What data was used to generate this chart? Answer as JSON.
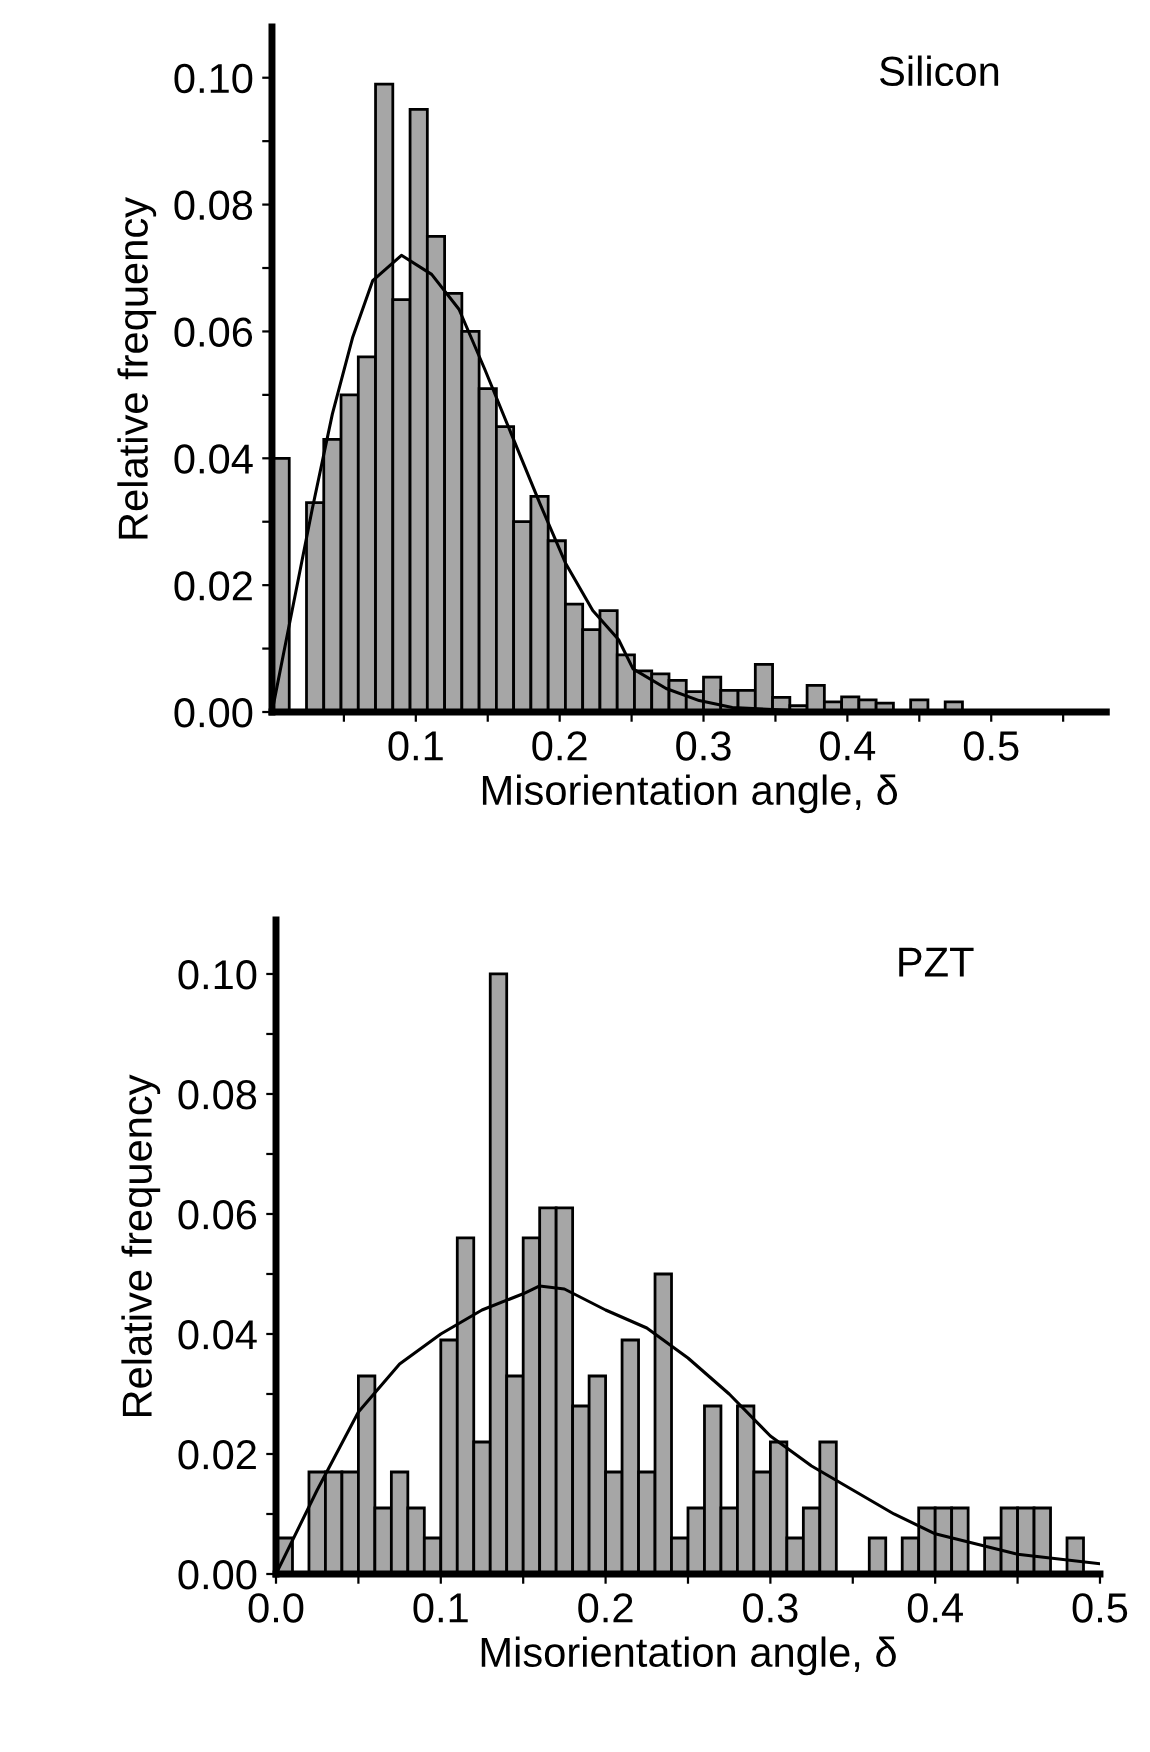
{
  "chart_data": [
    {
      "type": "histogram",
      "xlabel": "Misorientation angle, δ",
      "ylabel": "Relative frequency",
      "annotations": [
        "Silicon"
      ],
      "color": "#a6a6a6",
      "grid": false,
      "legend": false,
      "bins": [
        0,
        0.012,
        0.024,
        0.036,
        0.048,
        0.06,
        0.072,
        0.084,
        0.096,
        0.108,
        0.12,
        0.132,
        0.144,
        0.156,
        0.168,
        0.18,
        0.192,
        0.204,
        0.216,
        0.228,
        0.24,
        0.252,
        0.264,
        0.276,
        0.288,
        0.3,
        0.312,
        0.324,
        0.336,
        0.348,
        0.36,
        0.372,
        0.384,
        0.396,
        0.408,
        0.42,
        0.432,
        0.444,
        0.456,
        0.468,
        0.48,
        0.492,
        0.504,
        0.516,
        0.528,
        0.54,
        0.552
      ],
      "values": [
        0.04,
        0,
        0.033,
        0.043,
        0.05,
        0.056,
        0.099,
        0.065,
        0.095,
        0.075,
        0.066,
        0.06,
        0.051,
        0.045,
        0.03,
        0.034,
        0.027,
        0.017,
        0.013,
        0.016,
        0.009,
        0.0065,
        0.006,
        0.005,
        0.0032,
        0.0055,
        0.0034,
        0.0034,
        0.0075,
        0.0023,
        0.001,
        0.0042,
        0.0016,
        0.0024,
        0.0019,
        0.0014,
        0,
        0.0019,
        0,
        0.0016,
        0,
        null,
        null,
        0,
        0,
        null
      ],
      "series": [
        {
          "type": "line",
          "color": "#000000",
          "x": [
            0.0,
            0.014,
            0.028,
            0.042,
            0.056,
            0.07,
            0.09,
            0.111,
            0.13,
            0.148,
            0.167,
            0.186,
            0.204,
            0.223,
            0.241,
            0.251,
            0.274,
            0.297,
            0.32,
            0.367,
            0.46,
            0.55
          ],
          "values": [
            0,
            0.016,
            0.032,
            0.047,
            0.059,
            0.068,
            0.072,
            0.069,
            0.0635,
            0.054,
            0.0435,
            0.033,
            0.0235,
            0.016,
            0.0114,
            0.0068,
            0.0037,
            0.0018,
            0.0007,
            0.0002,
            0,
            0
          ]
        }
      ],
      "xlim": [
        0,
        0.58
      ],
      "ylim": [
        0,
        0.108
      ],
      "xticks": [
        {
          "value": 0.05,
          "label": null
        },
        {
          "value": 0.1,
          "label": "0.1"
        },
        {
          "value": 0.15,
          "label": null
        },
        {
          "value": 0.2,
          "label": "0.2"
        },
        {
          "value": 0.25,
          "label": null
        },
        {
          "value": 0.3,
          "label": "0.3"
        },
        {
          "value": 0.35,
          "label": null
        },
        {
          "value": 0.4,
          "label": "0.4"
        },
        {
          "value": 0.45,
          "label": null
        },
        {
          "value": 0.5,
          "label": "0.5"
        },
        {
          "value": 0.55,
          "label": null
        }
      ],
      "yticks": [
        {
          "value": 0,
          "label": "0.00"
        },
        {
          "value": 0.01,
          "label": null
        },
        {
          "value": 0.02,
          "label": "0.02"
        },
        {
          "value": 0.03,
          "label": null
        },
        {
          "value": 0.04,
          "label": "0.04"
        },
        {
          "value": 0.05,
          "label": null
        },
        {
          "value": 0.06,
          "label": "0.06"
        },
        {
          "value": 0.07,
          "label": null
        },
        {
          "value": 0.08,
          "label": "0.08"
        },
        {
          "value": 0.09,
          "label": null
        },
        {
          "value": 0.1,
          "label": "0.10"
        }
      ]
    },
    {
      "type": "histogram",
      "xlabel": "Misorientation angle, δ",
      "ylabel": "Relative frequency",
      "annotations": [
        "PZT"
      ],
      "color": "#a6a6a6",
      "grid": false,
      "legend": false,
      "bins": [
        0,
        0.01,
        0.02,
        0.03,
        0.04,
        0.05,
        0.06,
        0.07,
        0.08,
        0.09,
        0.1,
        0.11,
        0.12,
        0.13,
        0.14,
        0.15,
        0.16,
        0.17,
        0.18,
        0.19,
        0.2,
        0.21,
        0.22,
        0.23,
        0.24,
        0.25,
        0.26,
        0.27,
        0.28,
        0.29,
        0.3,
        0.31,
        0.32,
        0.33,
        0.34,
        0.35,
        0.36,
        0.37,
        0.38,
        0.39,
        0.4,
        0.41,
        0.42,
        0.43,
        0.44,
        0.45,
        0.46,
        0.47,
        0.48,
        0.49,
        0.5
      ],
      "values": [
        0.006,
        0,
        0.017,
        0.017,
        0.017,
        0.033,
        0.011,
        0.017,
        0.011,
        0.006,
        0.039,
        0.056,
        0.022,
        0.1,
        0.033,
        0.056,
        0.061,
        0.061,
        0.028,
        0.033,
        0.017,
        0.039,
        0.017,
        0.05,
        0.006,
        0.011,
        0.028,
        0.011,
        0.028,
        0.017,
        0.022,
        0.006,
        0.011,
        0.022,
        0,
        0,
        0.006,
        0,
        0.006,
        0.011,
        0.011,
        0.011,
        0,
        0.006,
        0.011,
        0.011,
        0.011,
        0,
        0.006,
        0
      ],
      "series": [
        {
          "type": "line",
          "color": "#000000",
          "x": [
            0.0,
            0.025,
            0.05,
            0.075,
            0.1,
            0.125,
            0.15,
            0.16,
            0.175,
            0.2,
            0.225,
            0.25,
            0.275,
            0.3,
            0.325,
            0.35,
            0.375,
            0.4,
            0.45,
            0.5
          ],
          "values": [
            0,
            0.014,
            0.027,
            0.035,
            0.04,
            0.044,
            0.0467,
            0.048,
            0.0475,
            0.044,
            0.041,
            0.036,
            0.03,
            0.023,
            0.018,
            0.014,
            0.01,
            0.0067,
            0.0033,
            0.0017
          ]
        }
      ],
      "xlim": [
        0,
        0.5
      ],
      "ylim": [
        0,
        0.109
      ],
      "xticks": [
        {
          "value": 0,
          "label": "0.0"
        },
        {
          "value": 0.05,
          "label": null
        },
        {
          "value": 0.1,
          "label": "0.1"
        },
        {
          "value": 0.15,
          "label": null
        },
        {
          "value": 0.2,
          "label": "0.2"
        },
        {
          "value": 0.25,
          "label": null
        },
        {
          "value": 0.3,
          "label": "0.3"
        },
        {
          "value": 0.35,
          "label": null
        },
        {
          "value": 0.4,
          "label": "0.4"
        },
        {
          "value": 0.45,
          "label": null
        },
        {
          "value": 0.5,
          "label": "0.5"
        }
      ],
      "yticks": [
        {
          "value": 0,
          "label": "0.00"
        },
        {
          "value": 0.01,
          "label": null
        },
        {
          "value": 0.02,
          "label": "0.02"
        },
        {
          "value": 0.03,
          "label": null
        },
        {
          "value": 0.04,
          "label": "0.04"
        },
        {
          "value": 0.05,
          "label": null
        },
        {
          "value": 0.06,
          "label": "0.06"
        },
        {
          "value": 0.07,
          "label": null
        },
        {
          "value": 0.08,
          "label": "0.08"
        },
        {
          "value": 0.09,
          "label": null
        },
        {
          "value": 0.1,
          "label": "0.10"
        }
      ]
    }
  ]
}
